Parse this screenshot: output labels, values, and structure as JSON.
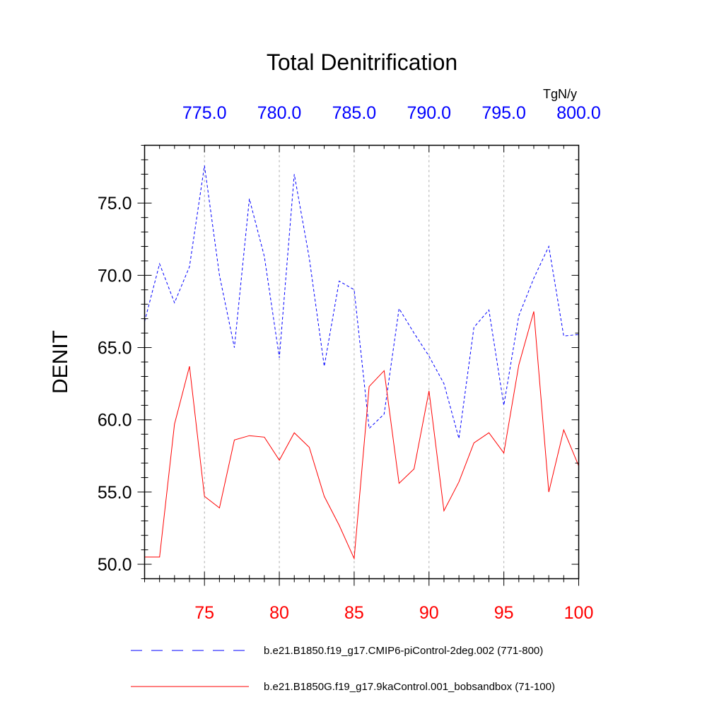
{
  "chart_data": {
    "type": "line",
    "title": "Total Denitrification",
    "ylabel": "DENIT",
    "units": "TgN/y",
    "ylim": [
      49,
      79
    ],
    "y_ticks": [
      50.0,
      55.0,
      60.0,
      65.0,
      70.0,
      75.0
    ],
    "y_tick_labels": [
      "50.0",
      "55.0",
      "60.0",
      "65.0",
      "70.0",
      "75.0"
    ],
    "bottom_axis": {
      "range": [
        71,
        100
      ],
      "ticks": [
        75,
        80,
        85,
        90,
        95,
        100
      ],
      "tick_labels": [
        "75",
        "80",
        "85",
        "90",
        "95",
        "100"
      ],
      "color": "#ff0000"
    },
    "top_axis": {
      "range": [
        771,
        800
      ],
      "ticks": [
        775,
        780,
        785,
        790,
        795,
        800
      ],
      "tick_labels": [
        "775.0",
        "780.0",
        "785.0",
        "790.0",
        "795.0",
        "800.0"
      ],
      "color": "#0000ff"
    },
    "grid": "vertical dashed at major ticks",
    "series": [
      {
        "name": "b.e21.B1850.f19_g17.CMIP6-piControl-2deg.002 (771-800)",
        "color": "#0000ff",
        "style": "dashed",
        "x_axis": "top",
        "x": [
          771,
          772,
          773,
          774,
          775,
          776,
          777,
          778,
          779,
          780,
          781,
          782,
          783,
          784,
          785,
          786,
          787,
          788,
          789,
          790,
          791,
          792,
          793,
          794,
          795,
          796,
          797,
          798,
          799,
          800
        ],
        "values": [
          66.8,
          70.8,
          68.1,
          70.6,
          77.6,
          70.0,
          65.0,
          75.3,
          71.3,
          64.3,
          77.0,
          71.2,
          63.7,
          69.6,
          69.0,
          59.4,
          60.4,
          67.7,
          66.0,
          64.4,
          62.5,
          58.7,
          66.4,
          67.6,
          61.0,
          67.2,
          69.8,
          72.0,
          65.8,
          65.9
        ]
      },
      {
        "name": "b.e21.B1850G.f19_g17.9kaControl.001_bobsandbox (71-100)",
        "color": "#ff0000",
        "style": "solid",
        "x_axis": "bottom",
        "x": [
          71,
          72,
          73,
          74,
          75,
          76,
          77,
          78,
          79,
          80,
          81,
          82,
          83,
          84,
          85,
          86,
          87,
          88,
          89,
          90,
          91,
          92,
          93,
          94,
          95,
          96,
          97,
          98,
          99,
          100
        ],
        "values": [
          50.5,
          50.5,
          59.7,
          63.7,
          54.7,
          53.9,
          58.6,
          58.9,
          58.8,
          57.2,
          59.1,
          58.1,
          54.7,
          52.7,
          50.4,
          62.3,
          63.4,
          55.6,
          56.6,
          62.0,
          53.7,
          55.7,
          58.4,
          59.1,
          57.7,
          63.8,
          67.5,
          55.0,
          59.3,
          56.8
        ]
      }
    ],
    "legend": "bottom"
  }
}
